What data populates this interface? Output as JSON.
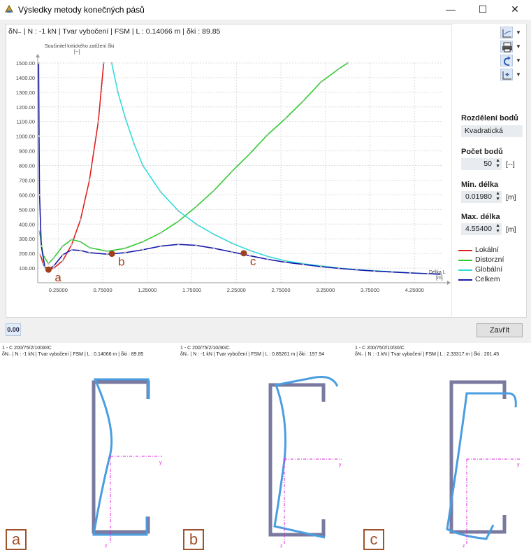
{
  "window": {
    "title": "Výsledky metody konečných pásů",
    "minimize_glyph": "—",
    "maximize_glyph": "☐",
    "close_glyph": "✕"
  },
  "info_line": "δN₋ | N : -1 kN | Tvar vybočení | FSM | L : 0.14066 m | δki : 89.85",
  "chart_data": {
    "type": "line",
    "ylabel": "Součinitel kritického zatížení δki",
    "ylabel_unit": "[--]",
    "xlabel": "Délka L",
    "xlabel_unit": "[m]",
    "ylim": [
      0,
      1500
    ],
    "xlim": [
      0.0198,
      4.554
    ],
    "y_ticks": [
      "100.00",
      "200.00",
      "300.00",
      "400.00",
      "500.00",
      "600.00",
      "700.00",
      "800.00",
      "900.00",
      "1000.00",
      "1100.00",
      "1200.00",
      "1300.00",
      "1400.00",
      "1500.00"
    ],
    "x_ticks": [
      "0.25000",
      "0.75000",
      "1.25000",
      "1.75000",
      "2.25000",
      "2.75000",
      "3.25000",
      "3.75000",
      "4.25000"
    ],
    "grid": true,
    "series": [
      {
        "name": "Lokální",
        "color": "#e02020",
        "x": [
          0.05,
          0.08,
          0.1,
          0.14,
          0.2,
          0.3,
          0.4,
          0.5,
          0.6,
          0.7,
          0.76
        ],
        "y": [
          190,
          130,
          105,
          92,
          100,
          150,
          260,
          430,
          700,
          1100,
          1500
        ]
      },
      {
        "name": "Distorzní",
        "color": "#33cc33",
        "x": [
          0.04,
          0.08,
          0.14,
          0.2,
          0.3,
          0.4,
          0.5,
          0.6,
          0.8,
          1.0,
          1.2,
          1.4,
          1.6,
          1.8,
          2.0,
          2.2,
          2.4,
          2.6,
          2.8,
          3.0,
          3.2,
          3.4,
          3.5
        ],
        "y": [
          350,
          190,
          130,
          170,
          250,
          295,
          280,
          240,
          215,
          235,
          280,
          340,
          420,
          520,
          630,
          760,
          880,
          1010,
          1120,
          1240,
          1370,
          1460,
          1500
        ]
      },
      {
        "name": "Globální",
        "color": "#33dddd",
        "x": [
          0.85,
          0.92,
          1.0,
          1.1,
          1.2,
          1.4,
          1.6,
          1.8,
          2.0,
          2.2,
          2.4,
          2.6,
          2.8,
          3.0,
          3.2,
          3.4,
          3.6,
          3.8,
          4.0,
          4.2,
          4.4,
          4.55
        ],
        "y": [
          1500,
          1300,
          1130,
          950,
          800,
          620,
          490,
          400,
          330,
          270,
          220,
          180,
          150,
          130,
          115,
          100,
          90,
          82,
          75,
          68,
          62,
          58
        ]
      },
      {
        "name": "Celkem",
        "color": "#1a1aaa",
        "x": [
          0.03,
          0.035,
          0.04,
          0.06,
          0.1,
          0.14,
          0.2,
          0.3,
          0.4,
          0.5,
          0.6,
          0.8,
          1.0,
          1.2,
          1.4,
          1.6,
          1.8,
          2.0,
          2.2,
          2.4,
          2.6,
          2.8,
          3.0,
          3.2,
          3.4,
          3.6,
          3.8,
          4.0,
          4.2,
          4.4,
          4.55
        ],
        "y": [
          1500,
          1000,
          600,
          250,
          110,
          90,
          115,
          190,
          225,
          220,
          205,
          195,
          205,
          225,
          250,
          262,
          255,
          235,
          210,
          185,
          160,
          140,
          125,
          110,
          98,
          88,
          80,
          73,
          67,
          62,
          58
        ]
      }
    ],
    "markers": [
      {
        "label": "a",
        "x": 0.14066,
        "y": 89.85
      },
      {
        "label": "b",
        "x": 0.85261,
        "y": 197.94
      },
      {
        "label": "c",
        "x": 2.33317,
        "y": 201.45
      }
    ]
  },
  "toolbar": {
    "axes_icon": "axes-icon",
    "print_icon": "print-icon",
    "undo_icon": "undo-icon",
    "settings_icon": "settings-icon"
  },
  "settings": {
    "dist_label": "Rozdělení bodů",
    "dist_value": "Kvadratická",
    "count_label": "Počet bodů",
    "count_value": "50",
    "count_unit": "[--]",
    "min_label": "Min. délka",
    "min_value": "0.01980",
    "min_unit": "[m]",
    "max_label": "Max. délka",
    "max_value": "4.55400",
    "max_unit": "[m]"
  },
  "legend": [
    {
      "label": "Lokální",
      "color": "#e02020"
    },
    {
      "label": "Distorzní",
      "color": "#33cc33"
    },
    {
      "label": "Globální",
      "color": "#33dddd"
    },
    {
      "label": "Celkem",
      "color": "#1a1aaa"
    }
  ],
  "bottom": {
    "small_icon_text": "0.00",
    "close_button": "Zavřít"
  },
  "panels": [
    {
      "letter": "a",
      "section": "1 - C 200/75/2/10/30/C",
      "caption": "δN₋ | N : -1 kN | Tvar vybočení | FSM | L : 0.14066 m | δki : 89.85",
      "axis_y": "y",
      "axis_z": "z"
    },
    {
      "letter": "b",
      "section": "1 - C 200/75/2/10/30/C",
      "caption": "δN₋ | N : -1 kN | Tvar vybočení | FSM | L : 0.85261 m | δki : 197.94",
      "axis_y": "y",
      "axis_z": "z"
    },
    {
      "letter": "c",
      "section": "1 - C 200/75/2/10/30/C",
      "caption": "δN₋ | N : -1 kN | Tvar vybočení | FSM | L : 2.33317 m | δki : 201.45",
      "axis_y": "y",
      "axis_z": "z"
    }
  ]
}
